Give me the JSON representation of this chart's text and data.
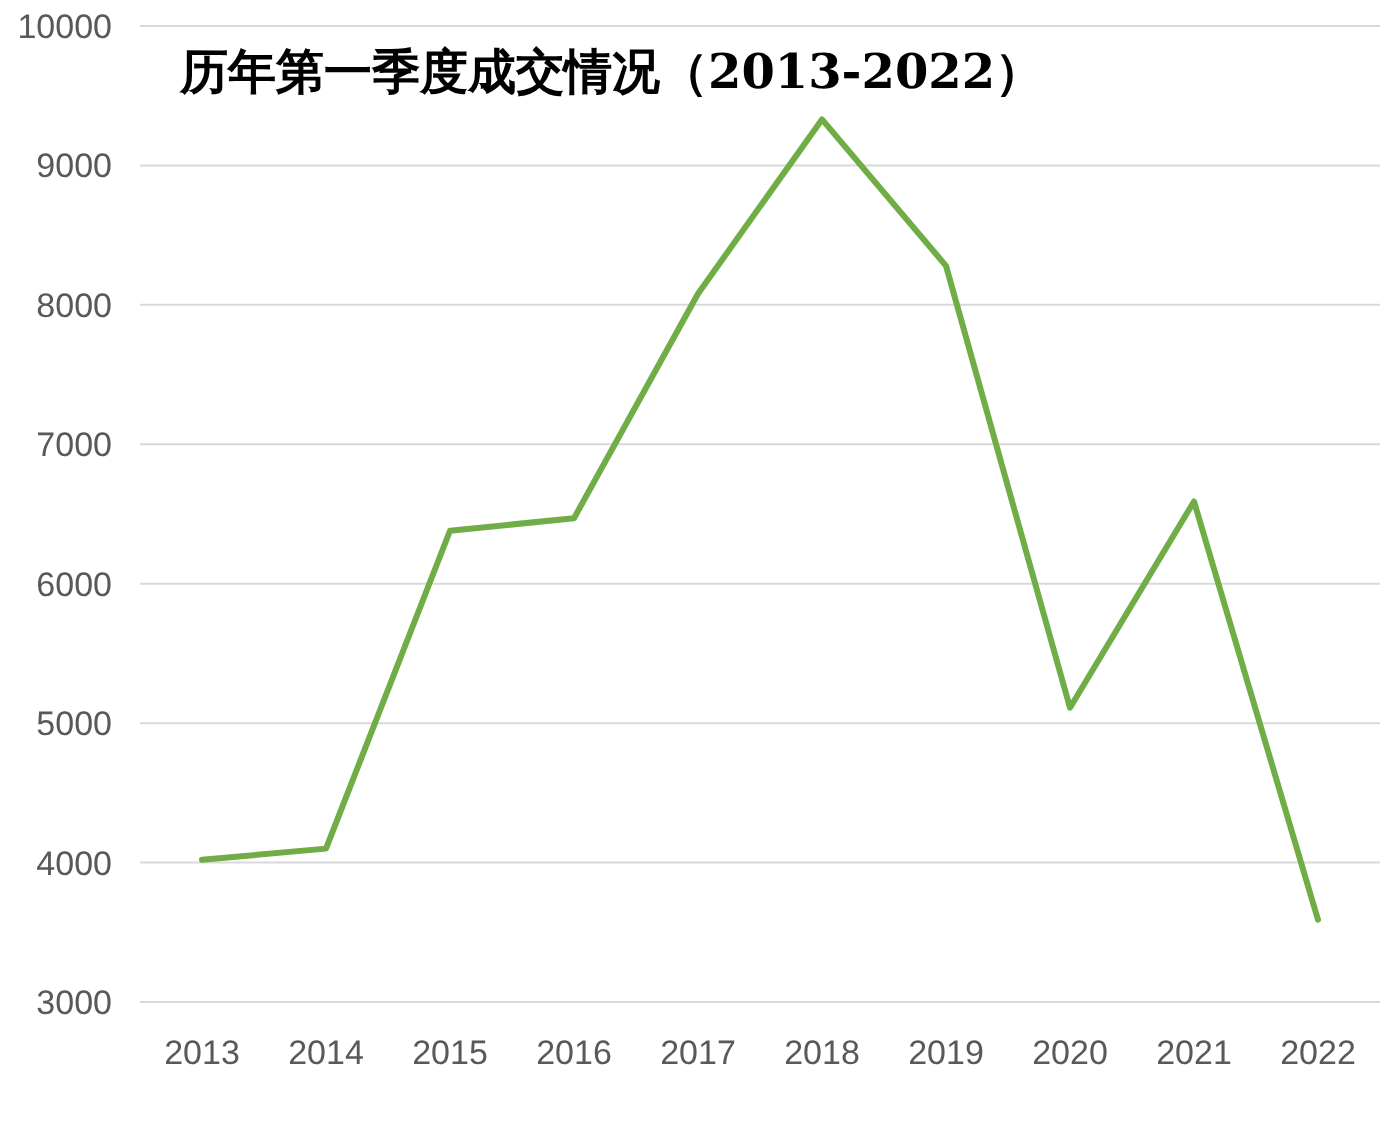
{
  "chart_data": {
    "type": "line",
    "title": "历年第一季度成交情况（2013-2022）",
    "categories": [
      "2013",
      "2014",
      "2015",
      "2016",
      "2017",
      "2018",
      "2019",
      "2020",
      "2021",
      "2022"
    ],
    "series": [
      {
        "color": "#70ad47",
        "values": [
          4020,
          4100,
          6380,
          6470,
          8080,
          9330,
          8280,
          5110,
          6590,
          3590
        ]
      }
    ],
    "ylim": [
      3000,
      10000
    ],
    "yticks": [
      3000,
      4000,
      5000,
      6000,
      7000,
      8000,
      9000,
      10000
    ],
    "grid": "y",
    "line_style": "solid"
  }
}
